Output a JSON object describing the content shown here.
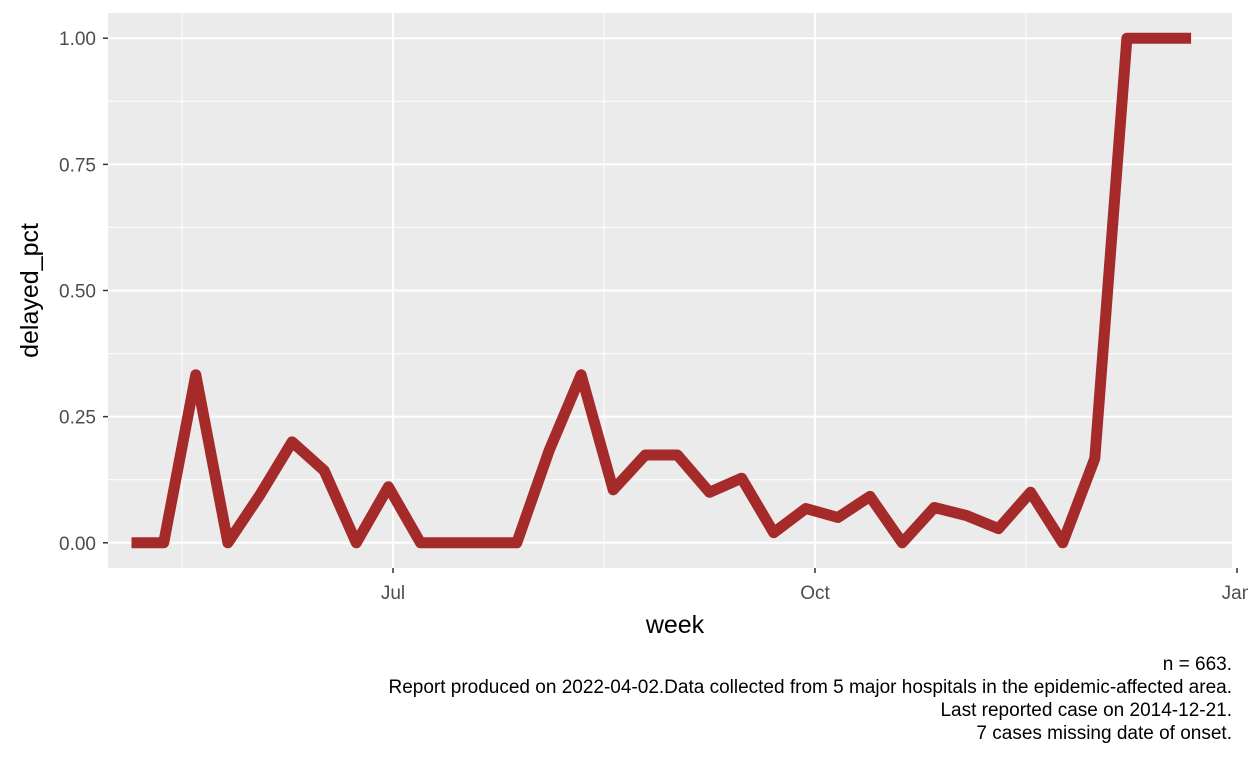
{
  "chart_data": {
    "type": "line",
    "xlabel": "week",
    "ylabel": "delayed_pct",
    "x_tick_labels": [
      "Jul",
      "Oct",
      "Jan"
    ],
    "x_tick_dates": [
      "2014-07-01",
      "2014-10-01",
      "2015-01-01"
    ],
    "ylim": [
      -0.05,
      1.05
    ],
    "y_ticks": [
      0,
      0.25,
      0.5,
      0.75,
      1.0
    ],
    "y_tick_labels": [
      "0.00",
      "0.25",
      "0.50",
      "0.75",
      "1.00"
    ],
    "grid": true,
    "background_color": "#EBEBEB",
    "grid_color": "#FFFFFF",
    "line_color": "#A52A2A",
    "series": [
      {
        "points": [
          {
            "x": "2014-05-05",
            "y": 0.0
          },
          {
            "x": "2014-05-12",
            "y": 0.0
          },
          {
            "x": "2014-05-19",
            "y": 0.333
          },
          {
            "x": "2014-05-26",
            "y": 0.0
          },
          {
            "x": "2014-06-02",
            "y": 0.095
          },
          {
            "x": "2014-06-09",
            "y": 0.2
          },
          {
            "x": "2014-06-16",
            "y": 0.143
          },
          {
            "x": "2014-06-23",
            "y": 0.0
          },
          {
            "x": "2014-06-30",
            "y": 0.111
          },
          {
            "x": "2014-07-07",
            "y": 0.0
          },
          {
            "x": "2014-07-14",
            "y": 0.0
          },
          {
            "x": "2014-07-21",
            "y": 0.0
          },
          {
            "x": "2014-07-28",
            "y": 0.0
          },
          {
            "x": "2014-08-04",
            "y": 0.182
          },
          {
            "x": "2014-08-11",
            "y": 0.333
          },
          {
            "x": "2014-08-18",
            "y": 0.105
          },
          {
            "x": "2014-08-25",
            "y": 0.174
          },
          {
            "x": "2014-09-01",
            "y": 0.174
          },
          {
            "x": "2014-09-08",
            "y": 0.1
          },
          {
            "x": "2014-09-15",
            "y": 0.128
          },
          {
            "x": "2014-09-22",
            "y": 0.02
          },
          {
            "x": "2014-09-29",
            "y": 0.068
          },
          {
            "x": "2014-10-06",
            "y": 0.05
          },
          {
            "x": "2014-10-13",
            "y": 0.092
          },
          {
            "x": "2014-10-20",
            "y": 0.0
          },
          {
            "x": "2014-10-27",
            "y": 0.07
          },
          {
            "x": "2014-11-03",
            "y": 0.054
          },
          {
            "x": "2014-11-10",
            "y": 0.028
          },
          {
            "x": "2014-11-17",
            "y": 0.1
          },
          {
            "x": "2014-11-24",
            "y": 0.0
          },
          {
            "x": "2014-12-01",
            "y": 0.167
          },
          {
            "x": "2014-12-08",
            "y": 1.0
          },
          {
            "x": "2014-12-15",
            "y": 1.0
          },
          {
            "x": "2014-12-22",
            "y": 1.0
          }
        ]
      }
    ]
  },
  "caption": {
    "line1": "n = 663.",
    "line2": "Report produced on 2022-04-02.Data collected from 5 major hospitals in the epidemic-affected area.",
    "line3": "Last reported case on 2014-12-21.",
    "line4": "7 cases missing date of onset."
  }
}
